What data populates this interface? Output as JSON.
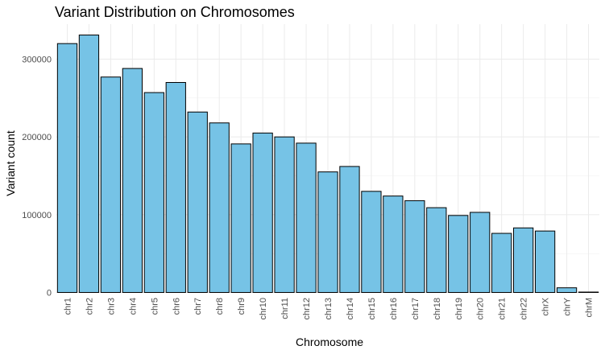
{
  "chart_data": {
    "type": "bar",
    "title": "Variant Distribution on Chromosomes",
    "xlabel": "Chromosome",
    "ylabel": "Variant count",
    "categories": [
      "chr1",
      "chr2",
      "chr3",
      "chr4",
      "chr5",
      "chr6",
      "chr7",
      "chr8",
      "chr9",
      "chr10",
      "chr11",
      "chr12",
      "chr13",
      "chr14",
      "chr15",
      "chr16",
      "chr17",
      "chr18",
      "chr19",
      "chr20",
      "chr21",
      "chr22",
      "chrX",
      "chrY",
      "chrM"
    ],
    "values": [
      320000,
      331000,
      277000,
      288000,
      257000,
      270000,
      232000,
      218000,
      191000,
      205000,
      200000,
      192000,
      155000,
      162000,
      130000,
      124000,
      118000,
      109000,
      99000,
      103000,
      76000,
      83000,
      79000,
      6000,
      500
    ],
    "ylim": [
      0,
      345000
    ],
    "yticks": [
      0,
      100000,
      200000,
      300000
    ],
    "ytick_labels": [
      "0",
      "100000",
      "200000",
      "300000"
    ],
    "grid": true,
    "colors": {
      "bar_fill": "#76c3e6",
      "bar_stroke": "#000000",
      "grid_major": "#ebebeb",
      "grid_minor": "#f2f2f2"
    }
  }
}
